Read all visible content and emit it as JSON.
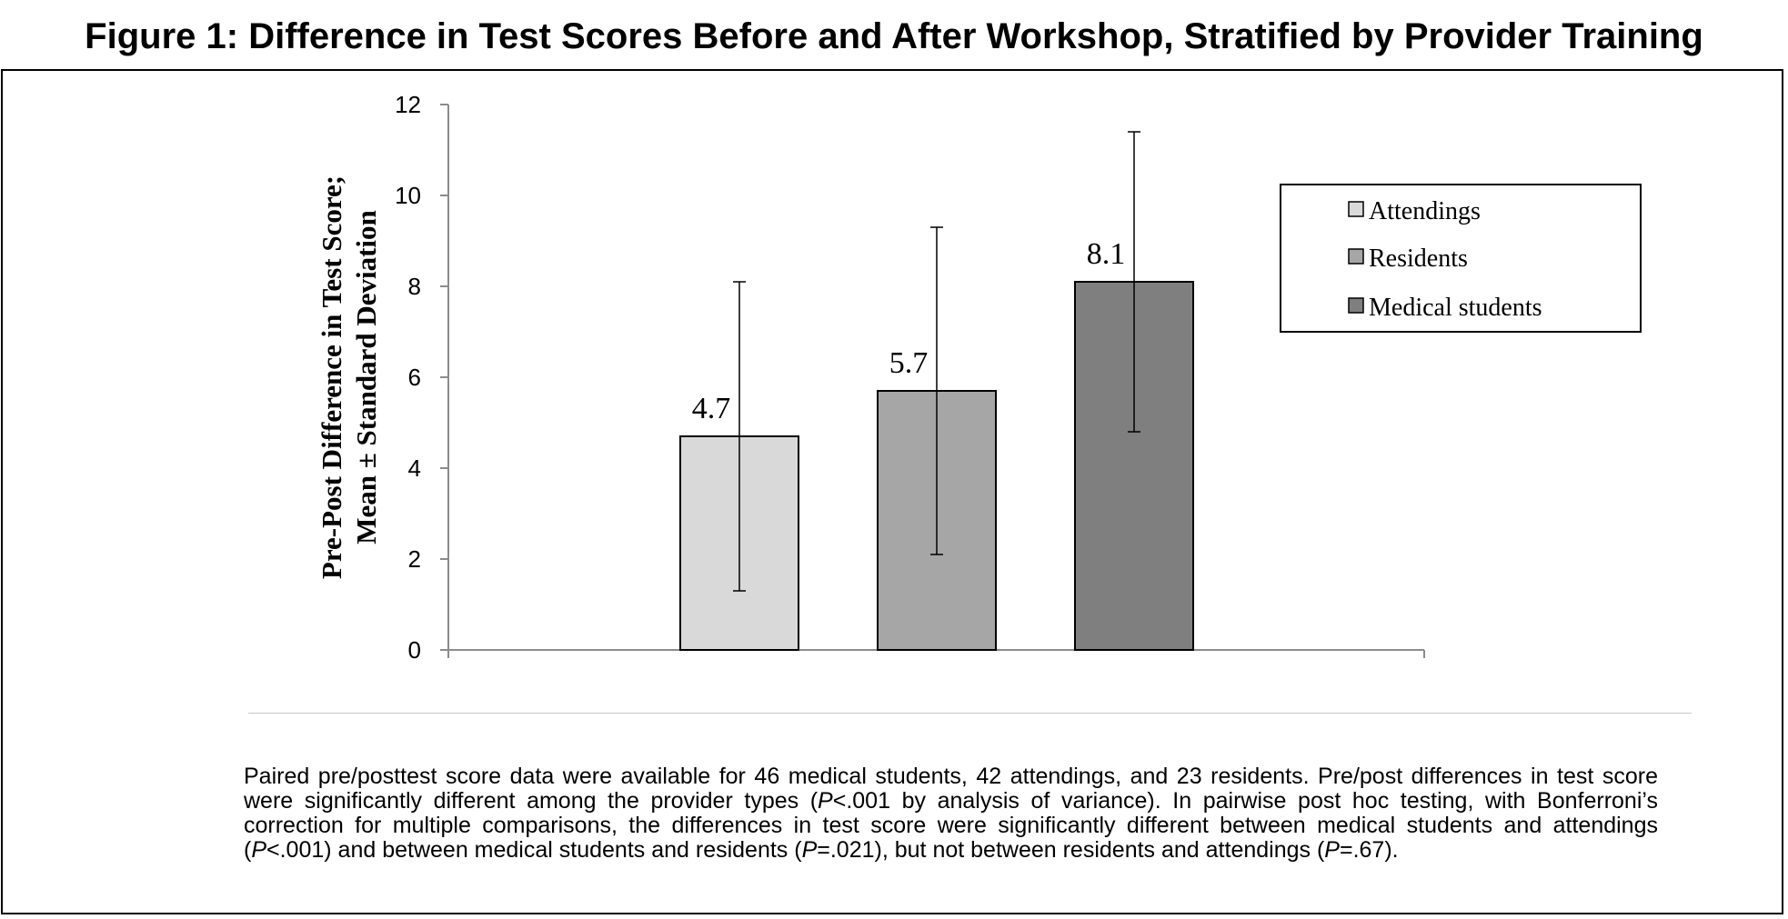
{
  "figure_title": "Figure 1: Difference in Test Scores Before and After Workshop, Stratified by Provider Training",
  "chart_data": {
    "type": "bar",
    "ylabel": [
      "Pre-Post Difference in Test Score;",
      "Mean ± Standard Deviation"
    ],
    "xlabel": "",
    "ylim": [
      0,
      12
    ],
    "yticks": [
      0,
      2,
      4,
      6,
      8,
      10,
      12
    ],
    "grid": false,
    "legend_position": "top-right",
    "series": [
      {
        "name": "Attendings",
        "value": 4.7,
        "error_low": 1.3,
        "error_high": 8.1,
        "color": "#d9d9d9",
        "data_label": "4.7"
      },
      {
        "name": "Residents",
        "value": 5.7,
        "error_low": 2.1,
        "error_high": 9.3,
        "color": "#a6a6a6",
        "data_label": "5.7"
      },
      {
        "name": "Medical students",
        "value": 8.1,
        "error_low": 4.8,
        "error_high": 11.4,
        "color": "#7f7f7f",
        "data_label": "8.1"
      }
    ]
  },
  "caption": {
    "p1": "Paired pre/posttest score data were available for 46 medical students, 42 attendings, and 23 residents. Pre/post differences in test score were significantly different among the provider types (",
    "p_sym1": "P",
    "p2": "<.001 by analysis of variance). In pairwise post hoc testing, with Bonferroni’s correction for multiple comparisons, the differences in test score were significantly different between medical students and attendings (",
    "p_sym2": "P",
    "p3": "<.001) and between medical students and residents (",
    "p_sym3": "P",
    "p4": "=.021), but not between residents and attendings (",
    "p_sym4": "P",
    "p5": "=.67)."
  }
}
